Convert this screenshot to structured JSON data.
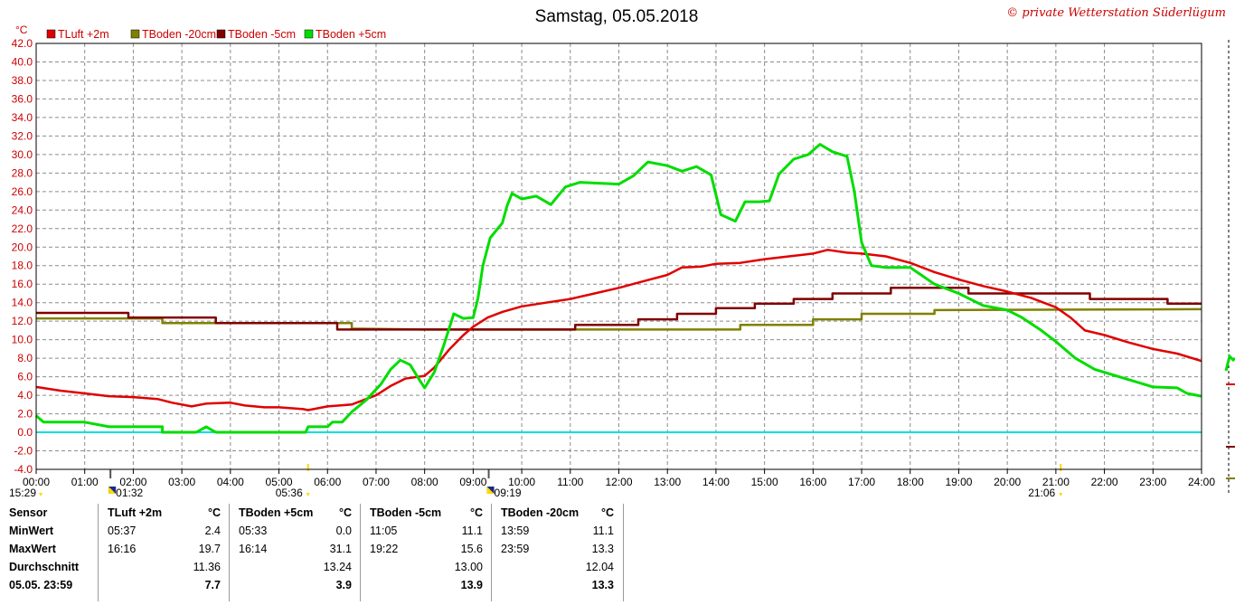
{
  "title": "Samstag, 05.05.2018",
  "copyright": "© private Wetterstation Süderlügum",
  "unit_label": "°C",
  "chart_data": {
    "type": "line",
    "x_unit": "hours",
    "xlim": [
      0,
      24
    ],
    "ylim": [
      -4,
      42
    ],
    "x_tick_labels": [
      "00:00",
      "01:00",
      "02:00",
      "03:00",
      "04:00",
      "05:00",
      "06:00",
      "07:00",
      "08:00",
      "09:00",
      "10:00",
      "11:00",
      "12:00",
      "13:00",
      "14:00",
      "15:00",
      "16:00",
      "17:00",
      "18:00",
      "19:00",
      "20:00",
      "21:00",
      "22:00",
      "23:00",
      "24:00"
    ],
    "y_tick_labels": [
      "-4.0",
      "-2.0",
      "0.0",
      "2.0",
      "4.0",
      "6.0",
      "8.0",
      "10.0",
      "12.0",
      "14.0",
      "16.0",
      "18.0",
      "20.0",
      "22.0",
      "24.0",
      "26.0",
      "28.0",
      "30.0",
      "32.0",
      "34.0",
      "36.0",
      "38.0",
      "40.0",
      "42.0"
    ],
    "grid": true,
    "legend_position": "top-left",
    "reference_line": {
      "y": 0,
      "color": "#00e0e0"
    },
    "series": [
      {
        "name": "TLuft +2m",
        "color": "#e00000",
        "width": 2.5,
        "points": [
          [
            0,
            4.9
          ],
          [
            0.5,
            4.5
          ],
          [
            1,
            4.2
          ],
          [
            1.5,
            3.9
          ],
          [
            2,
            3.8
          ],
          [
            2.5,
            3.6
          ],
          [
            2.8,
            3.2
          ],
          [
            3.2,
            2.8
          ],
          [
            3.5,
            3.1
          ],
          [
            4,
            3.2
          ],
          [
            4.3,
            2.9
          ],
          [
            4.7,
            2.7
          ],
          [
            5,
            2.7
          ],
          [
            5.5,
            2.5
          ],
          [
            5.6,
            2.4
          ],
          [
            6,
            2.8
          ],
          [
            6.5,
            3.0
          ],
          [
            7,
            4.0
          ],
          [
            7.3,
            5.0
          ],
          [
            7.6,
            5.8
          ],
          [
            8,
            6.1
          ],
          [
            8.2,
            7.0
          ],
          [
            8.5,
            8.9
          ],
          [
            8.8,
            10.5
          ],
          [
            9,
            11.4
          ],
          [
            9.3,
            12.4
          ],
          [
            9.6,
            13.0
          ],
          [
            10,
            13.6
          ],
          [
            10.5,
            14.0
          ],
          [
            11,
            14.4
          ],
          [
            11.5,
            15.0
          ],
          [
            12,
            15.6
          ],
          [
            12.5,
            16.3
          ],
          [
            13,
            17.0
          ],
          [
            13.3,
            17.8
          ],
          [
            13.7,
            17.9
          ],
          [
            14,
            18.2
          ],
          [
            14.5,
            18.3
          ],
          [
            15,
            18.7
          ],
          [
            15.5,
            19.0
          ],
          [
            16,
            19.3
          ],
          [
            16.3,
            19.7
          ],
          [
            16.7,
            19.4
          ],
          [
            17,
            19.3
          ],
          [
            17.5,
            19.0
          ],
          [
            18,
            18.3
          ],
          [
            18.5,
            17.3
          ],
          [
            19,
            16.5
          ],
          [
            19.5,
            15.8
          ],
          [
            20,
            15.2
          ],
          [
            20.5,
            14.5
          ],
          [
            21,
            13.5
          ],
          [
            21.3,
            12.4
          ],
          [
            21.6,
            11.0
          ],
          [
            22,
            10.5
          ],
          [
            22.5,
            9.7
          ],
          [
            23,
            9.0
          ],
          [
            23.5,
            8.5
          ],
          [
            24,
            7.7
          ]
        ]
      },
      {
        "name": "TBoden -20cm",
        "color": "#808000",
        "width": 2.5,
        "points": [
          [
            0,
            12.3
          ],
          [
            2.6,
            12.3
          ],
          [
            2.6,
            11.8
          ],
          [
            6.5,
            11.8
          ],
          [
            6.5,
            11.2
          ],
          [
            8,
            11.1
          ],
          [
            14.5,
            11.1
          ],
          [
            14.5,
            11.6
          ],
          [
            16,
            11.6
          ],
          [
            16,
            12.2
          ],
          [
            17,
            12.2
          ],
          [
            17,
            12.8
          ],
          [
            18.5,
            12.8
          ],
          [
            18.5,
            13.2
          ],
          [
            24,
            13.3
          ]
        ]
      },
      {
        "name": "TBoden -5cm",
        "color": "#800000",
        "width": 2.5,
        "points": [
          [
            0,
            12.9
          ],
          [
            1.9,
            12.9
          ],
          [
            1.9,
            12.4
          ],
          [
            3.7,
            12.4
          ],
          [
            3.7,
            11.8
          ],
          [
            6.2,
            11.8
          ],
          [
            6.2,
            11.1
          ],
          [
            11.1,
            11.1
          ],
          [
            11.1,
            11.6
          ],
          [
            12.4,
            11.6
          ],
          [
            12.4,
            12.2
          ],
          [
            13.2,
            12.2
          ],
          [
            13.2,
            12.8
          ],
          [
            14,
            12.8
          ],
          [
            14,
            13.4
          ],
          [
            14.8,
            13.4
          ],
          [
            14.8,
            13.9
          ],
          [
            15.6,
            13.9
          ],
          [
            15.6,
            14.4
          ],
          [
            16.4,
            14.4
          ],
          [
            16.4,
            15.0
          ],
          [
            17.6,
            15.0
          ],
          [
            17.6,
            15.6
          ],
          [
            19.2,
            15.6
          ],
          [
            19.2,
            15.0
          ],
          [
            21.7,
            15.0
          ],
          [
            21.7,
            14.4
          ],
          [
            23.3,
            14.4
          ],
          [
            23.3,
            13.9
          ],
          [
            24,
            13.9
          ]
        ]
      },
      {
        "name": "TBoden +5cm",
        "color": "#00dd00",
        "width": 3,
        "points": [
          [
            0,
            1.8
          ],
          [
            0.15,
            1.1
          ],
          [
            1,
            1.1
          ],
          [
            1.5,
            0.6
          ],
          [
            2.6,
            0.6
          ],
          [
            2.6,
            0.0
          ],
          [
            3.3,
            0.0
          ],
          [
            3.5,
            0.6
          ],
          [
            3.7,
            0.0
          ],
          [
            5.55,
            0.0
          ],
          [
            5.6,
            0.6
          ],
          [
            6,
            0.6
          ],
          [
            6.1,
            1.1
          ],
          [
            6.3,
            1.1
          ],
          [
            6.5,
            2.2
          ],
          [
            6.8,
            3.5
          ],
          [
            7.1,
            5.2
          ],
          [
            7.3,
            6.8
          ],
          [
            7.5,
            7.8
          ],
          [
            7.7,
            7.3
          ],
          [
            7.9,
            5.6
          ],
          [
            8.0,
            4.8
          ],
          [
            8.2,
            6.5
          ],
          [
            8.4,
            9.5
          ],
          [
            8.6,
            12.8
          ],
          [
            8.8,
            12.3
          ],
          [
            9.0,
            12.4
          ],
          [
            9.1,
            14.5
          ],
          [
            9.2,
            18.0
          ],
          [
            9.35,
            21.0
          ],
          [
            9.6,
            22.6
          ],
          [
            9.7,
            24.5
          ],
          [
            9.8,
            25.8
          ],
          [
            10,
            25.2
          ],
          [
            10.3,
            25.5
          ],
          [
            10.6,
            24.6
          ],
          [
            10.9,
            26.5
          ],
          [
            11.2,
            27.0
          ],
          [
            11.6,
            26.9
          ],
          [
            12,
            26.8
          ],
          [
            12.3,
            27.7
          ],
          [
            12.6,
            29.2
          ],
          [
            13,
            28.8
          ],
          [
            13.3,
            28.2
          ],
          [
            13.6,
            28.7
          ],
          [
            13.9,
            27.8
          ],
          [
            14.1,
            23.5
          ],
          [
            14.4,
            22.8
          ],
          [
            14.6,
            24.9
          ],
          [
            14.9,
            24.9
          ],
          [
            15.1,
            25.0
          ],
          [
            15.3,
            27.9
          ],
          [
            15.6,
            29.5
          ],
          [
            15.9,
            30.0
          ],
          [
            16.14,
            31.1
          ],
          [
            16.4,
            30.3
          ],
          [
            16.7,
            29.8
          ],
          [
            16.85,
            26.0
          ],
          [
            17.0,
            20.5
          ],
          [
            17.2,
            18.0
          ],
          [
            17.5,
            17.8
          ],
          [
            18,
            17.8
          ],
          [
            18.5,
            16.0
          ],
          [
            19,
            15.0
          ],
          [
            19.5,
            13.7
          ],
          [
            20,
            13.2
          ],
          [
            20.3,
            12.4
          ],
          [
            20.7,
            11.0
          ],
          [
            21,
            9.8
          ],
          [
            21.4,
            8.0
          ],
          [
            21.8,
            6.8
          ],
          [
            22.3,
            6.0
          ],
          [
            23,
            4.9
          ],
          [
            23.5,
            4.8
          ],
          [
            23.7,
            4.2
          ],
          [
            24,
            3.9
          ]
        ]
      }
    ],
    "markers": [
      {
        "label": "15:29",
        "x": 0
      },
      {
        "label": "01:32",
        "x": 1.53
      },
      {
        "label": "05:36",
        "x": 5.6
      },
      {
        "label": "09:19",
        "x": 9.32
      },
      {
        "label": "21:06",
        "x": 21.1
      }
    ]
  },
  "stats": {
    "sensor_col": {
      "header": "Sensor",
      "rows": [
        "MinWert",
        "MaxWert",
        "Durchschnitt",
        "05.05. 23:59"
      ]
    },
    "columns": [
      {
        "name": "TLuft +2m",
        "unit": "°C",
        "min_time": "05:37",
        "min": "2.4",
        "max_time": "16:16",
        "max": "19.7",
        "avg": "11.36",
        "current": "7.7"
      },
      {
        "name": "TBoden +5cm",
        "unit": "°C",
        "min_time": "05:33",
        "min": "0.0",
        "max_time": "16:14",
        "max": "31.1",
        "avg": "13.24",
        "current": "3.9"
      },
      {
        "name": "TBoden -5cm",
        "unit": "°C",
        "min_time": "11:05",
        "min": "11.1",
        "max_time": "19:22",
        "max": "15.6",
        "avg": "13.00",
        "current": "13.9"
      },
      {
        "name": "TBoden -20cm",
        "unit": "°C",
        "min_time": "13:59",
        "min": "11.1",
        "max_time": "23:59",
        "max": "13.3",
        "avg": "12.04",
        "current": "13.3"
      }
    ]
  }
}
